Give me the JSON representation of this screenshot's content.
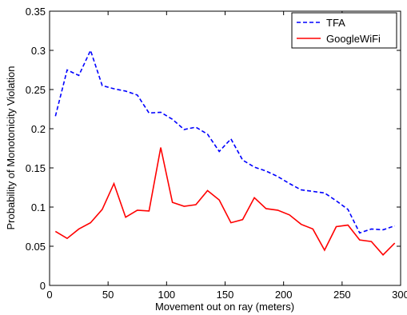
{
  "chart_data": {
    "type": "line",
    "title": "",
    "xlabel": "Movement out on ray (meters)",
    "ylabel": "Probability of Monotonicity Violation",
    "xlim": [
      0,
      300
    ],
    "ylim": [
      0,
      0.35
    ],
    "x_ticks": [
      0,
      50,
      100,
      150,
      200,
      250,
      300
    ],
    "y_ticks": [
      0,
      0.05,
      0.1,
      0.15,
      0.2,
      0.25,
      0.3,
      0.35
    ],
    "x_tick_labels": [
      "0",
      "50",
      "100",
      "150",
      "200",
      "250",
      "300"
    ],
    "y_tick_labels": [
      "0",
      "0.05",
      "0.1",
      "0.15",
      "0.2",
      "0.25",
      "0.3",
      "0.35"
    ],
    "grid": false,
    "legend_position": "top-right",
    "x": [
      5,
      15,
      25,
      35,
      45,
      55,
      65,
      75,
      85,
      95,
      105,
      115,
      125,
      135,
      145,
      155,
      165,
      175,
      185,
      195,
      205,
      215,
      225,
      235,
      245,
      255,
      265,
      275,
      285,
      295
    ],
    "series": [
      {
        "name": "TFA",
        "color": "#0000ff",
        "style": "dashed",
        "values": [
          0.216,
          0.275,
          0.268,
          0.3,
          0.255,
          0.251,
          0.248,
          0.243,
          0.22,
          0.221,
          0.212,
          0.199,
          0.202,
          0.193,
          0.171,
          0.187,
          0.16,
          0.151,
          0.146,
          0.139,
          0.13,
          0.122,
          0.12,
          0.118,
          0.108,
          0.097,
          0.067,
          0.072,
          0.071,
          0.076
        ]
      },
      {
        "name": "GoogleWiFi",
        "color": "#ff0000",
        "style": "solid",
        "values": [
          0.069,
          0.06,
          0.072,
          0.08,
          0.097,
          0.13,
          0.087,
          0.096,
          0.095,
          0.176,
          0.106,
          0.101,
          0.103,
          0.121,
          0.109,
          0.08,
          0.084,
          0.112,
          0.098,
          0.096,
          0.09,
          0.078,
          0.072,
          0.045,
          0.075,
          0.077,
          0.058,
          0.056,
          0.039,
          0.054
        ]
      }
    ]
  }
}
